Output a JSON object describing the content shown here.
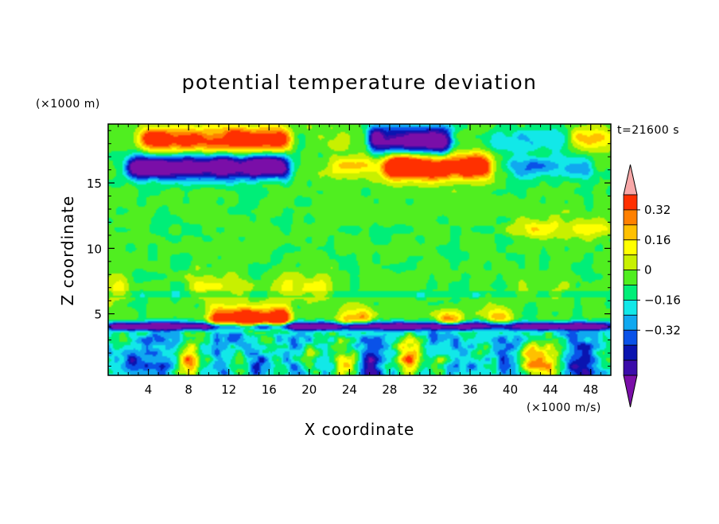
{
  "chart_data": {
    "type": "heatmap",
    "title": "potential temperature deviation",
    "xlabel": "X coordinate",
    "ylabel": "Z coordinate",
    "x_unit": "(×1000 m/s)",
    "y_unit": "(×1000 m)",
    "time_label": "t=21600 s",
    "xlim": [
      0,
      50
    ],
    "ylim": [
      0.3,
      19.5
    ],
    "x_ticks": [
      4,
      8,
      12,
      16,
      20,
      24,
      28,
      32,
      36,
      40,
      44,
      48
    ],
    "y_ticks": [
      5,
      10,
      15
    ],
    "colorbar": {
      "levels": [
        -0.48,
        -0.4,
        -0.32,
        -0.24,
        -0.16,
        -0.08,
        0,
        0.08,
        0.16,
        0.24,
        0.32,
        0.4
      ],
      "colors": [
        "#7a0ea8",
        "#3b0caa",
        "#0a14b0",
        "#0a52e8",
        "#10a8f0",
        "#12e8e8",
        "#00ee78",
        "#50ee20",
        "#c8f000",
        "#ffff00",
        "#ffc000",
        "#ff8000",
        "#ff3000",
        "#f8a8a8"
      ],
      "tick_labels": [
        "-0.32",
        "-0.16",
        "0",
        "0.16",
        "0.32"
      ],
      "tick_values": [
        -0.32,
        -0.16,
        0,
        0.16,
        0.32
      ]
    },
    "field": {
      "background_value": 0.02,
      "bands": [
        {
          "z": 18.3,
          "width": 1.0,
          "amp": 0.5,
          "features": [
            [
              3,
              18,
              0.6
            ],
            [
              20,
              28,
              0.1
            ],
            [
              26,
              34,
              -0.9
            ],
            [
              38,
              46,
              -0.2
            ],
            [
              46,
              50,
              0.3
            ]
          ]
        },
        {
          "z": 16.2,
          "width": 0.9,
          "amp": 0.5,
          "features": [
            [
              2,
              18,
              -0.9
            ],
            [
              22,
              30,
              0.3
            ],
            [
              28,
              38,
              0.8
            ],
            [
              40,
              48,
              -0.3
            ]
          ]
        },
        {
          "z": 4.0,
          "width": 0.35,
          "amp": 0.5,
          "features": [
            [
              0,
              50,
              -0.9
            ]
          ]
        },
        {
          "z": 4.5,
          "width": 0.9,
          "amp": 0.5,
          "features": [
            [
              10,
              18,
              0.9
            ],
            [
              23,
              26,
              0.4
            ],
            [
              33,
              35,
              0.5
            ],
            [
              38,
              40,
              0.4
            ]
          ]
        },
        {
          "z": 7.0,
          "width": 1.0,
          "amp": 0.25,
          "features": [
            [
              0,
              2,
              0.5
            ],
            [
              8,
              14,
              0.4
            ],
            [
              16,
              22,
              0.4
            ],
            [
              40,
              48,
              0.1
            ]
          ]
        },
        {
          "z": 11.5,
          "width": 0.8,
          "amp": 0.2,
          "features": [
            [
              40,
              50,
              0.5
            ]
          ]
        }
      ],
      "lower_blobs": [
        [
          2.5,
          1.2,
          -0.6
        ],
        [
          8,
          1.5,
          0.9
        ],
        [
          13,
          1.2,
          0.5
        ],
        [
          15,
          1.0,
          -0.6
        ],
        [
          20,
          1.6,
          0.6
        ],
        [
          24,
          1.2,
          0.6
        ],
        [
          26,
          1.0,
          -0.4
        ],
        [
          30,
          1.5,
          0.9
        ],
        [
          33,
          1.2,
          0.6
        ],
        [
          36,
          1.0,
          -0.3
        ],
        [
          42,
          1.5,
          0.9
        ],
        [
          44,
          1.2,
          0.6
        ],
        [
          47,
          1.0,
          -0.4
        ]
      ]
    }
  }
}
